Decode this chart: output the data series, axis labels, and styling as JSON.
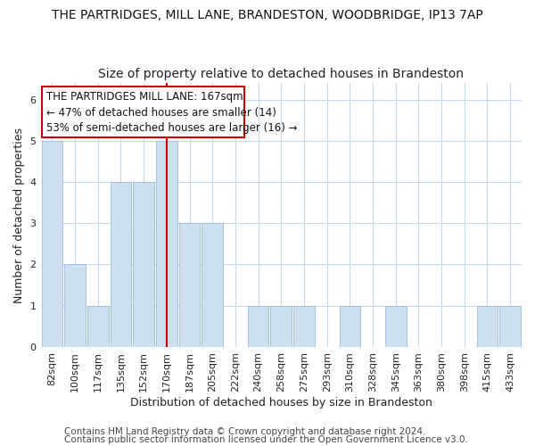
{
  "title": "THE PARTRIDGES, MILL LANE, BRANDESTON, WOODBRIDGE, IP13 7AP",
  "subtitle": "Size of property relative to detached houses in Brandeston",
  "xlabel": "Distribution of detached houses by size in Brandeston",
  "ylabel": "Number of detached properties",
  "categories": [
    "82sqm",
    "100sqm",
    "117sqm",
    "135sqm",
    "152sqm",
    "170sqm",
    "187sqm",
    "205sqm",
    "222sqm",
    "240sqm",
    "258sqm",
    "275sqm",
    "293sqm",
    "310sqm",
    "328sqm",
    "345sqm",
    "363sqm",
    "380sqm",
    "398sqm",
    "415sqm",
    "433sqm"
  ],
  "values": [
    5,
    2,
    1,
    4,
    4,
    5,
    3,
    3,
    0,
    1,
    1,
    1,
    0,
    1,
    0,
    1,
    0,
    0,
    0,
    1,
    1
  ],
  "bar_color": "#cce0f0",
  "bar_edge_color": "#99bbdd",
  "red_line_index": 5,
  "red_line_color": "#cc0000",
  "annotation_line1": "THE PARTRIDGES MILL LANE: 167sqm",
  "annotation_line2": "← 47% of detached houses are smaller (14)",
  "annotation_line3": "53% of semi-detached houses are larger (16) →",
  "ylim": [
    0,
    6.4
  ],
  "yticks": [
    0,
    1,
    2,
    3,
    4,
    5,
    6
  ],
  "footer1": "Contains HM Land Registry data © Crown copyright and database right 2024.",
  "footer2": "Contains public sector information licensed under the Open Government Licence v3.0.",
  "bg_color": "#ffffff",
  "plot_bg_color": "#ffffff",
  "title_fontsize": 10,
  "subtitle_fontsize": 10,
  "axis_label_fontsize": 9,
  "tick_fontsize": 8,
  "annotation_fontsize": 8.5,
  "footer_fontsize": 7.5
}
